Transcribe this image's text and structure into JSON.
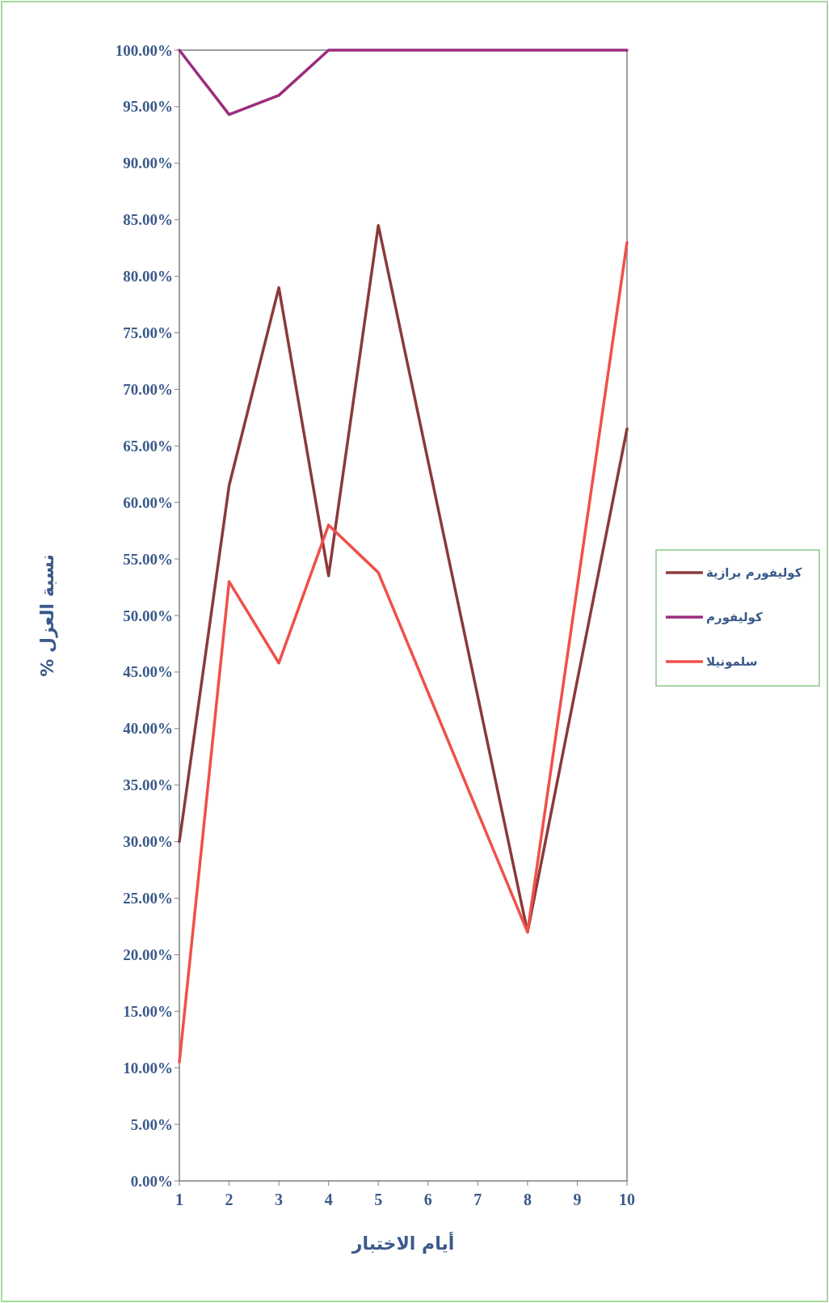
{
  "chart_data": {
    "type": "line",
    "xlabel": "أيام الاختبار",
    "ylabel": "نسبة العزل %",
    "xlim": [
      1,
      10
    ],
    "xticks": [
      1,
      2,
      3,
      4,
      5,
      6,
      7,
      8,
      9,
      10
    ],
    "ylim": [
      0,
      100
    ],
    "yticks": [
      {
        "value": 0,
        "label": "0.00%"
      },
      {
        "value": 5,
        "label": "5.00%"
      },
      {
        "value": 10,
        "label": "10.00%"
      },
      {
        "value": 15,
        "label": "15.00%"
      },
      {
        "value": 20,
        "label": "20.00%"
      },
      {
        "value": 25,
        "label": "25.00%"
      },
      {
        "value": 30,
        "label": "30.00%"
      },
      {
        "value": 35,
        "label": "35.00%"
      },
      {
        "value": 40,
        "label": "40.00%"
      },
      {
        "value": 45,
        "label": "45.00%"
      },
      {
        "value": 50,
        "label": "50.00%"
      },
      {
        "value": 55,
        "label": "55.00%"
      },
      {
        "value": 60,
        "label": "60.00%"
      },
      {
        "value": 65,
        "label": "65.00%"
      },
      {
        "value": 70,
        "label": "70.00%"
      },
      {
        "value": 75,
        "label": "75.00%"
      },
      {
        "value": 80,
        "label": "80.00%"
      },
      {
        "value": 85,
        "label": "85.00%"
      },
      {
        "value": 90,
        "label": "90.00%"
      },
      {
        "value": 95,
        "label": "95.00%"
      },
      {
        "value": 100,
        "label": "100.00%"
      }
    ],
    "x": [
      1,
      2,
      3,
      4,
      5,
      8,
      10
    ],
    "grid": false,
    "legend": "right",
    "marker": "none",
    "line_style": "solid",
    "series": [
      {
        "name": "كوليفورم برازية",
        "color": "#8b3a3a",
        "values": [
          30,
          61.5,
          79,
          53.5,
          84.5,
          22,
          66.5
        ]
      },
      {
        "name": "كوليفورم",
        "color": "#9b2d7f",
        "values": [
          100,
          94.3,
          96,
          100,
          100,
          100,
          100
        ]
      },
      {
        "name": "سلمونيلا",
        "color": "#f0504a",
        "values": [
          10.5,
          53,
          45.8,
          58,
          53.8,
          22,
          83
        ]
      }
    ]
  }
}
